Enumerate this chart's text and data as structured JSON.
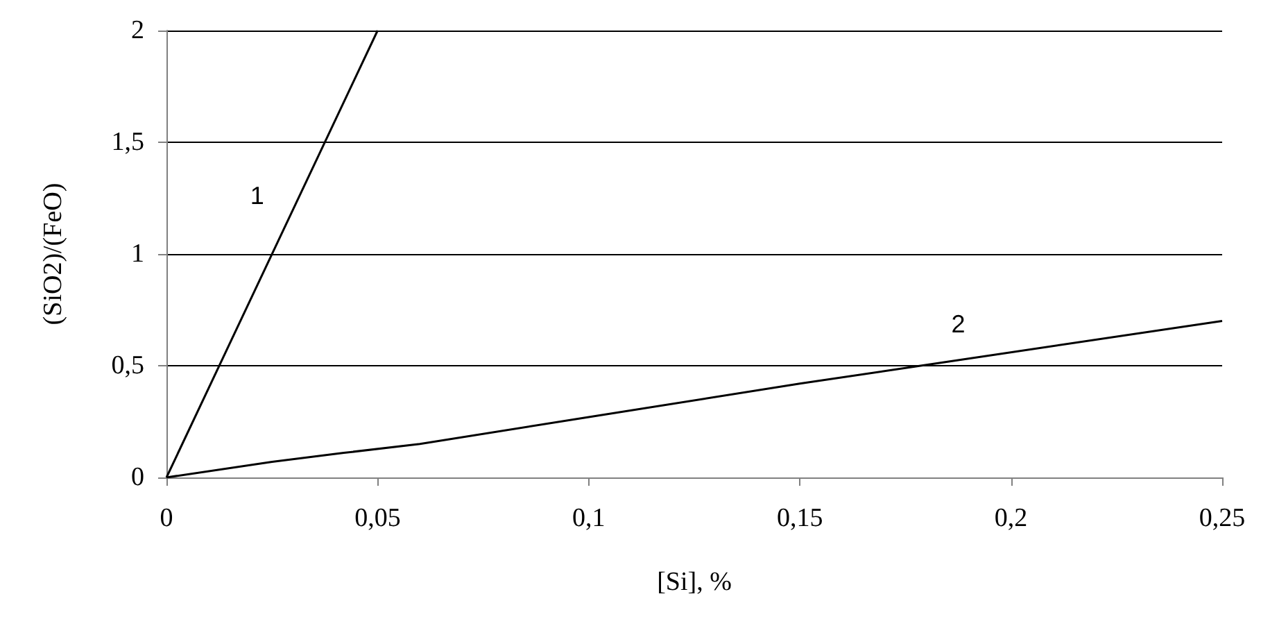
{
  "chart_data": {
    "type": "line",
    "xlabel": "[Si], %",
    "ylabel": "(SiO2)/(FeO)",
    "series": [
      {
        "name": "1",
        "color": "#000000",
        "x": [
          0,
          0.05
        ],
        "values": [
          0,
          2
        ]
      },
      {
        "name": "2",
        "color": "#000000",
        "x": [
          0,
          0.025,
          0.042,
          0.06,
          0.1,
          0.15,
          0.175,
          0.25
        ],
        "values": [
          0,
          0.07,
          0.11,
          0.15,
          0.27,
          0.42,
          0.49,
          0.7
        ]
      }
    ],
    "xlim": [
      0,
      0.25
    ],
    "xticks": [
      0,
      {
        "value": 0.05,
        "label": "0,05"
      },
      {
        "value": 0.1,
        "label": "0,1"
      },
      {
        "value": 0.15,
        "label": "0,15"
      },
      {
        "value": 0.2,
        "label": "0,2"
      },
      {
        "value": 0.25,
        "label": "0,25"
      }
    ],
    "ylim": [
      0,
      2
    ],
    "yticks": [
      0,
      {
        "value": 0.5,
        "label": "0,5"
      },
      1,
      {
        "value": 1.5,
        "label": "1,5"
      },
      2
    ],
    "grid": "y",
    "marker": "none",
    "line_style": "solid",
    "legend": false
  }
}
